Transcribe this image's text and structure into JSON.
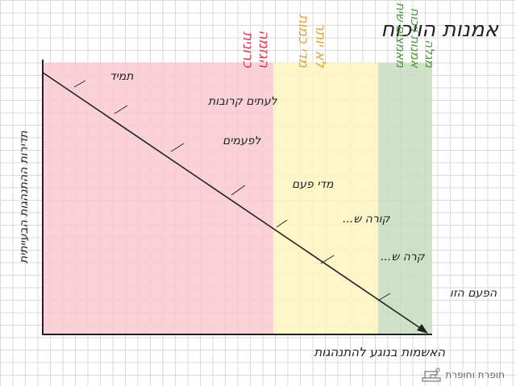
{
  "title": "אמנות הויכוח",
  "axes": {
    "y_label": "תדירות ההתנהגות הבעייתית",
    "x_label": "האשמות בנוגע להתנהגות"
  },
  "zones": [
    {
      "label_lines": [
        "הגזמה",
        "כרונית"
      ],
      "color": "#f9c9d2",
      "text_color": "#d83a52"
    },
    {
      "label_lines": [
        "לא יותר",
        "מדי כמות"
      ],
      "color": "#fdf4bf",
      "text_color": "#e2a63a"
    },
    {
      "label_lines": [
        "מגלה",
        "אמנות ויכוח",
        "מאמצים שיח"
      ],
      "color": "#c5ddbe",
      "text_color": "#4a9a3c"
    }
  ],
  "line_labels": [
    {
      "text": "תמיד"
    },
    {
      "text": "לעתים קרובות"
    },
    {
      "text": "לפעמים"
    },
    {
      "text": "מדי פעם"
    },
    {
      "text": "קורה ש..."
    },
    {
      "text": "קרה ש..."
    },
    {
      "text": "הפעם הזו"
    }
  ],
  "logo_text": "תופרת וחופרת"
}
